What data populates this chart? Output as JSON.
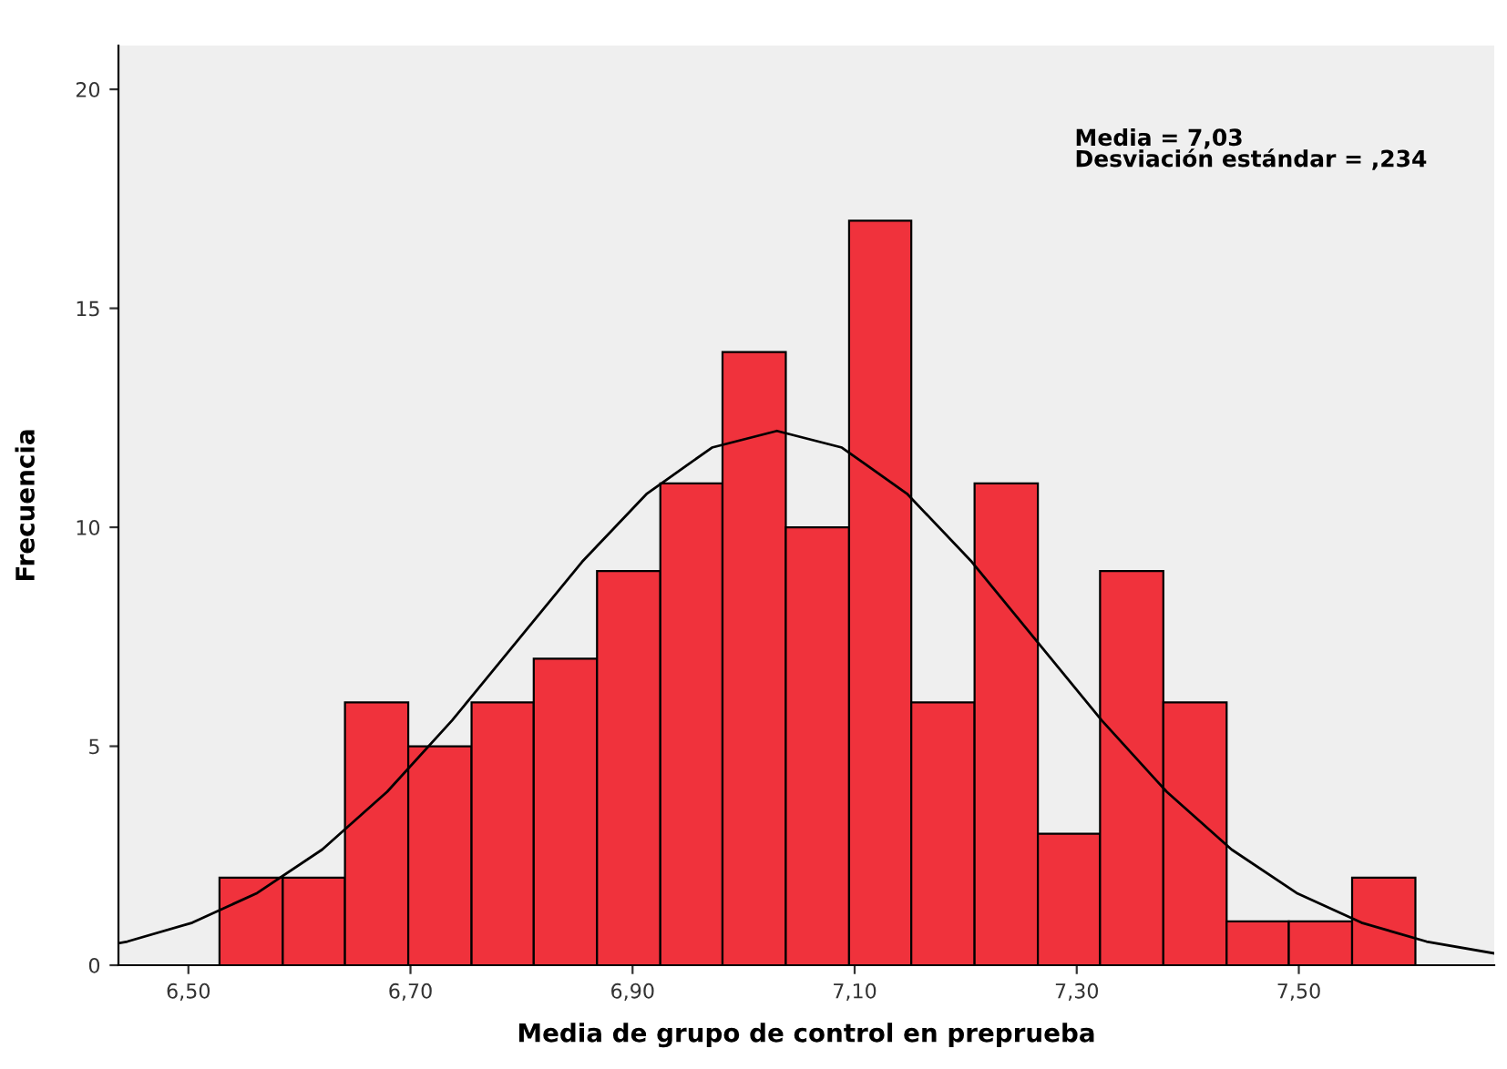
{
  "chart_data": {
    "type": "histogram",
    "xlabel": "Media de grupo de control en preprueba",
    "ylabel": "Frecuencia",
    "bins": [
      6.528,
      6.585,
      6.641,
      6.698,
      6.755,
      6.811,
      6.868,
      6.925,
      6.981,
      7.038,
      7.095,
      7.151,
      7.208,
      7.265,
      7.321,
      7.378,
      7.435,
      7.491,
      7.548,
      7.605
    ],
    "values": [
      2,
      2,
      6,
      5,
      6,
      7,
      9,
      11,
      14,
      10,
      17,
      6,
      11,
      3,
      9,
      6,
      1,
      1,
      2
    ],
    "color": "#f0323c",
    "series": [
      {
        "type": "line",
        "color": "#000000",
        "x": [
          6.437,
          6.445,
          6.5035,
          6.562,
          6.6205,
          6.679,
          6.7375,
          6.796,
          6.8545,
          6.913,
          6.9715,
          7.03,
          7.0885,
          7.147,
          7.2055,
          7.264,
          7.3225,
          7.381,
          7.4395,
          7.498,
          7.5565,
          7.615,
          7.676
        ],
        "values": [
          0.5,
          0.54,
          0.97,
          1.65,
          2.64,
          3.96,
          5.59,
          7.4,
          9.21,
          10.77,
          11.82,
          12.2,
          11.82,
          10.77,
          9.21,
          7.4,
          5.59,
          3.96,
          2.64,
          1.65,
          0.97,
          0.54,
          0.27
        ]
      }
    ],
    "xlim": [
      6.437,
      7.676
    ],
    "ylim": [
      0,
      21
    ],
    "xticks": [
      {
        "value": 6.5,
        "label": "6,50"
      },
      {
        "value": 6.7,
        "label": "6,70"
      },
      {
        "value": 6.9,
        "label": "6,90"
      },
      {
        "value": 7.1,
        "label": "7,10"
      },
      {
        "value": 7.3,
        "label": "7,30"
      },
      {
        "value": 7.5,
        "label": "7,50"
      }
    ],
    "yticks": [
      0,
      5,
      10,
      15,
      20
    ],
    "grid": false,
    "legend": false,
    "annotations": [
      "Media = 7,03\nDesviación estándar = ,234"
    ]
  }
}
